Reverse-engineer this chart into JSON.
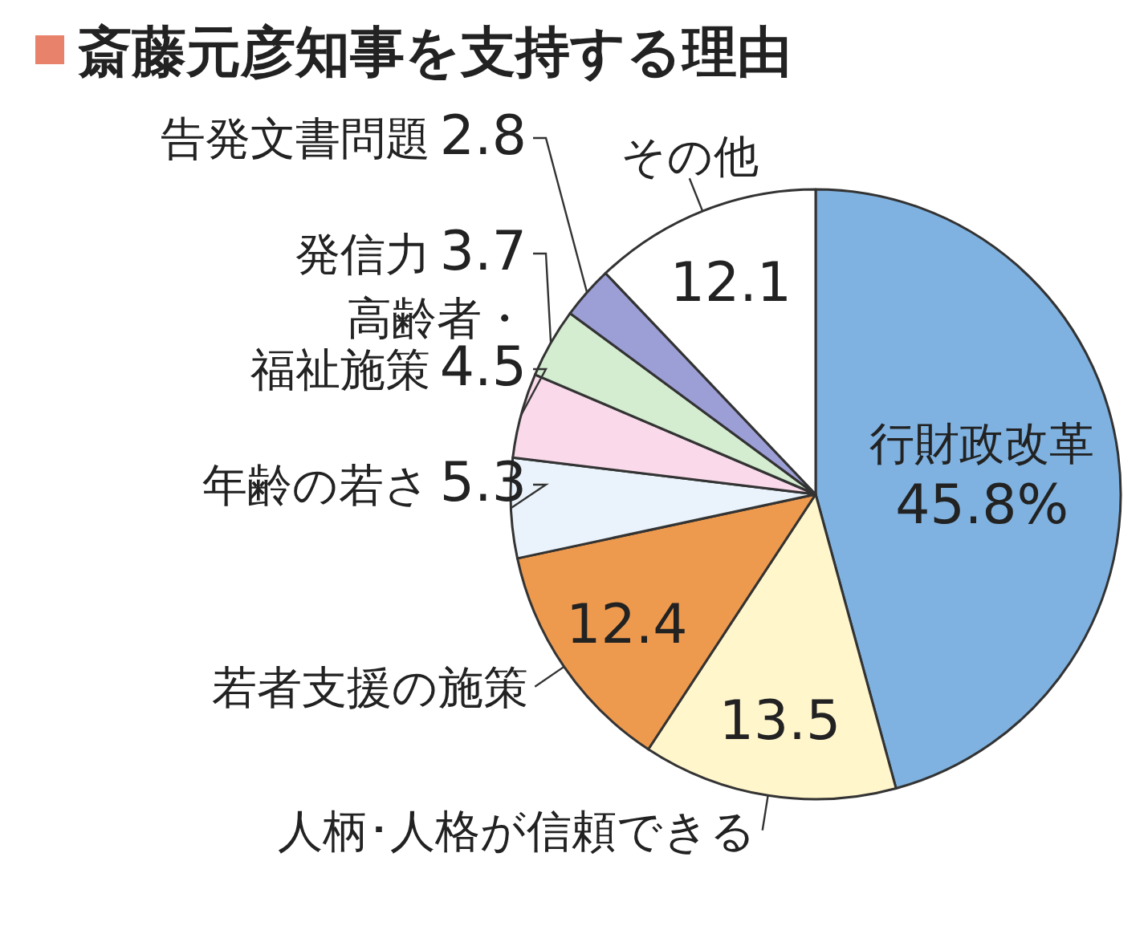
{
  "chart_data": {
    "type": "pie",
    "title": "斎藤元彦知事を支持する理由",
    "categories": [
      "行財政改革",
      "人柄･人格が信頼できる",
      "若者支援の施策",
      "年齢の若さ",
      "高齢者・福祉施策",
      "発信力",
      "告発文書問題",
      "その他"
    ],
    "values": [
      45.8,
      13.5,
      12.4,
      5.3,
      4.5,
      3.7,
      2.8,
      12.1
    ],
    "colors": [
      "#7fb2e0",
      "#fff6cc",
      "#ee9a4e",
      "#eaf3fb",
      "#f9d9ea",
      "#d4ecd0",
      "#9c9fd6",
      "#ffffff"
    ],
    "value_labels": [
      "45.8%",
      "13.5",
      "12.4",
      "5.3",
      "4.5",
      "3.7",
      "2.8",
      "12.1"
    ]
  }
}
